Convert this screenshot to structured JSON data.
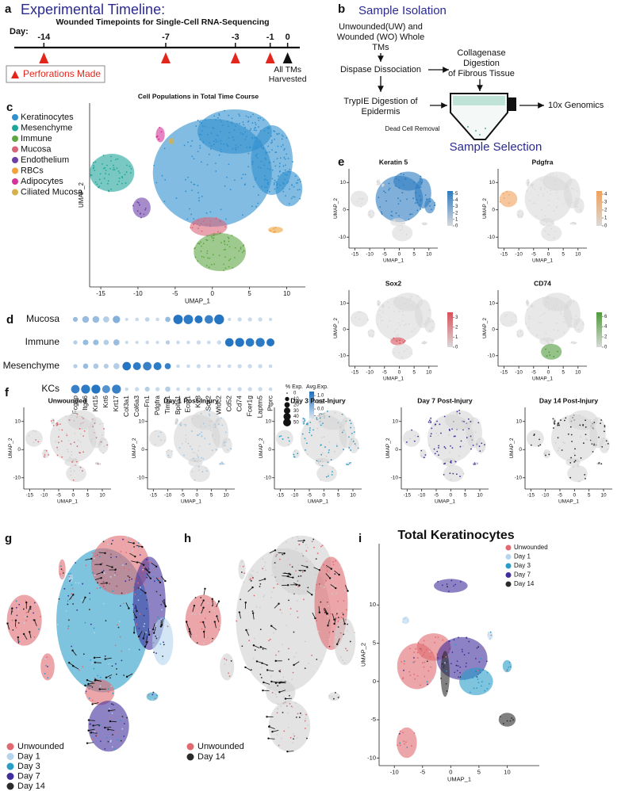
{
  "panel_a": {
    "label": "a",
    "title": "Experimental Timeline:",
    "subtitle": "Wounded Timepoints for Single-Cell RNA-Sequencing",
    "axis_label": "Day:",
    "xlim": [
      -15.7,
      0.7
    ],
    "days": [
      -14,
      -7,
      -3,
      -1,
      0
    ],
    "harvest_label": [
      "All TMs",
      "Harvested"
    ],
    "legend": "Perforations Made",
    "perforation_color": "#e3261c",
    "harvest_color": "#111111"
  },
  "panel_b": {
    "label": "b",
    "title": "Sample Isolation",
    "source": [
      "Unwounded(UW) and",
      "Wounded (WO) Whole",
      "TMs"
    ],
    "step1": "Dispase Dissociation",
    "step2": [
      "TrypIE Digestion of",
      "Epidermis"
    ],
    "step3": [
      "Collagenase",
      "Digestion",
      "of Fibrous Tissue"
    ],
    "dead_cell": "Dead Cell Removal",
    "output": "10x Genomics",
    "footer": "Sample Selection"
  },
  "panel_c": {
    "label": "c",
    "title": "Cell Populations in Total Time Course",
    "xlabel": "UMAP_1",
    "ylabel": "UMAP_2",
    "xlim": [
      -16.5,
      12.5
    ],
    "ylim": [
      -14,
      15
    ],
    "xticks": [
      -15,
      -10,
      -5,
      0,
      5,
      10
    ],
    "legend": [
      {
        "name": "Keratinocytes",
        "color": "#2f8fcf"
      },
      {
        "name": "Mesenchyme",
        "color": "#1fa59a"
      },
      {
        "name": "Immune",
        "color": "#5fa745"
      },
      {
        "name": "Mucosa",
        "color": "#d9657a"
      },
      {
        "name": "Endothelium",
        "color": "#6b40a8"
      },
      {
        "name": "RBCs",
        "color": "#f2a13b"
      },
      {
        "name": "Adipocytes",
        "color": "#d6339a"
      },
      {
        "name": "Ciliated Mucosa",
        "color": "#d6b04c"
      }
    ]
  },
  "panel_d": {
    "label": "d",
    "rows": [
      "Mucosa",
      "Immune",
      "Mesenchyme",
      "KCs"
    ],
    "genes": [
      "Fcgbp",
      "Itga6",
      "Krt15",
      "Krt6",
      "Krt17",
      "Col3a1",
      "Col6a3",
      "Fn1",
      "Pdgfra",
      "Timp1",
      "Bpifa1",
      "Ecm1",
      "Krt8",
      "Sox2",
      "Wfdc2",
      "Cd52",
      "Cd74",
      "Fcer1g",
      "Laptm5",
      "Ptprc"
    ],
    "pct": [
      [
        8,
        20,
        20,
        15,
        25,
        2,
        3,
        6,
        3,
        10,
        45,
        45,
        30,
        35,
        50,
        2,
        5,
        5,
        5,
        2
      ],
      [
        5,
        12,
        12,
        10,
        15,
        2,
        2,
        3,
        2,
        5,
        3,
        3,
        5,
        3,
        5,
        35,
        40,
        35,
        40,
        30
      ],
      [
        5,
        10,
        10,
        8,
        15,
        35,
        30,
        35,
        30,
        15,
        3,
        3,
        5,
        3,
        3,
        3,
        5,
        5,
        5,
        3
      ],
      [
        35,
        40,
        40,
        30,
        40,
        3,
        5,
        8,
        5,
        10,
        3,
        3,
        5,
        3,
        3,
        3,
        5,
        5,
        5,
        3
      ]
    ],
    "avg": [
      [
        0,
        0,
        0,
        -0.3,
        0.2,
        -0.5,
        -0.5,
        -0.4,
        -0.5,
        0,
        1.2,
        1.1,
        1.2,
        1,
        1.2,
        -0.5,
        -0.5,
        -0.5,
        -0.5,
        -0.5
      ],
      [
        -0.3,
        0,
        0,
        -0.3,
        0,
        -0.5,
        -0.5,
        -0.5,
        -0.5,
        -0.3,
        -0.5,
        -0.5,
        -0.5,
        -0.5,
        -0.5,
        1.2,
        1.2,
        1.1,
        1.1,
        1.2
      ],
      [
        -0.3,
        0,
        -0.2,
        -0.3,
        -0.3,
        1.2,
        1.1,
        1,
        1.1,
        1,
        -0.5,
        -0.5,
        -0.5,
        -0.5,
        -0.5,
        -0.5,
        -0.5,
        -0.5,
        -0.5,
        -0.5
      ],
      [
        1,
        1.1,
        1.2,
        0.7,
        1,
        -0.5,
        -0.5,
        -0.3,
        -0.5,
        -0.3,
        -0.5,
        -0.5,
        -0.4,
        -0.5,
        -0.5,
        -0.5,
        -0.5,
        -0.5,
        -0.5,
        -0.5
      ]
    ],
    "size_title": "% Exp.",
    "size_ticks": [
      0,
      10,
      20,
      30,
      40,
      50
    ],
    "color_title": "Avg.Exp.",
    "color_lim": [
      -0.7,
      1.3
    ],
    "color_ticks": [
      {
        "value": 1,
        "label": "1.0"
      },
      0.5,
      {
        "value": 0,
        "label": "0.0"
      },
      -0.5
    ],
    "low_color": "#dbe6f1",
    "high_color": "#1b6fc0"
  },
  "panel_e": {
    "label": "e",
    "xlim": [
      -17,
      13
    ],
    "ylim": [
      -14,
      15
    ],
    "xticks": [
      -15,
      -10,
      -5,
      0,
      5,
      10
    ],
    "yticks": [
      -10,
      0,
      10
    ],
    "xlabel": "UMAP_1",
    "ylabel": "UMAP_2",
    "low_color": "#d9d9d9",
    "plots": [
      {
        "title": "Keratin 5",
        "color": "#2c7bc0",
        "colorbar_lim": [
          0,
          5.4
        ],
        "colorbar_ticks": [
          0,
          1,
          2,
          3,
          4,
          5
        ]
      },
      {
        "title": "Pdgfra",
        "color": "#f0a05a",
        "colorbar_lim": [
          0,
          4.4
        ],
        "colorbar_ticks": [
          0,
          1,
          2,
          3,
          4
        ]
      },
      {
        "title": "Sox2",
        "color": "#d9505a",
        "colorbar_lim": [
          0,
          3.5
        ],
        "colorbar_ticks": [
          0,
          1,
          2,
          3
        ]
      },
      {
        "title": "CD74",
        "color": "#4f9a3a",
        "colorbar_lim": [
          0,
          6.8
        ],
        "colorbar_ticks": [
          0,
          2,
          4,
          6
        ]
      }
    ]
  },
  "panel_f": {
    "label": "f",
    "xlim": [
      -17,
      13
    ],
    "ylim": [
      -14,
      15
    ],
    "xticks": [
      -15,
      -10,
      -5,
      0,
      5,
      10
    ],
    "yticks": [
      -10,
      0,
      10
    ],
    "xlabel": "UMAP_1",
    "ylabel": "UMAP_2",
    "plots": [
      {
        "title": "Unwounded",
        "color": "#e06a6f"
      },
      {
        "title": "Day 1 Post-Injury",
        "color": "#9cc6e6"
      },
      {
        "title": "Day 3 Post-Injury",
        "color": "#2a9cc8"
      },
      {
        "title": "Day 7 Post-Injury",
        "color": "#3f2f9c"
      },
      {
        "title": "Day 14 Post-Injury",
        "color": "#2b2b2b"
      }
    ]
  },
  "panel_g": {
    "label": "g",
    "legend": [
      {
        "name": "Unwounded",
        "color": "#e06a6f"
      },
      {
        "name": "Day 1",
        "color": "#b5d5ee"
      },
      {
        "name": "Day 3",
        "color": "#2a9cc8"
      },
      {
        "name": "Day 7",
        "color": "#3f2f9c"
      },
      {
        "name": "Day 14",
        "color": "#2b2b2b"
      }
    ]
  },
  "panel_h": {
    "label": "h",
    "legend": [
      {
        "name": "Unwounded",
        "color": "#e06a6f"
      },
      {
        "name": "Day 14",
        "color": "#2b2b2b"
      }
    ]
  },
  "panel_i": {
    "label": "i",
    "title": "Total Keratinocytes",
    "xlabel": "UMAP_1",
    "ylabel": "UMAP_2",
    "xlim": [
      -12.7,
      15.7
    ],
    "ylim": [
      -11,
      18
    ],
    "xticks": [
      -10,
      -5,
      0,
      5,
      10
    ],
    "yticks": [
      -10,
      -5,
      0,
      5,
      10
    ],
    "legend": [
      {
        "name": "Unwounded",
        "color": "#e06a6f"
      },
      {
        "name": "Day 1",
        "color": "#b5d5ee"
      },
      {
        "name": "Day 3",
        "color": "#2a9cc8"
      },
      {
        "name": "Day 7",
        "color": "#3f2f9c"
      },
      {
        "name": "Day 14",
        "color": "#2b2b2b"
      }
    ]
  }
}
